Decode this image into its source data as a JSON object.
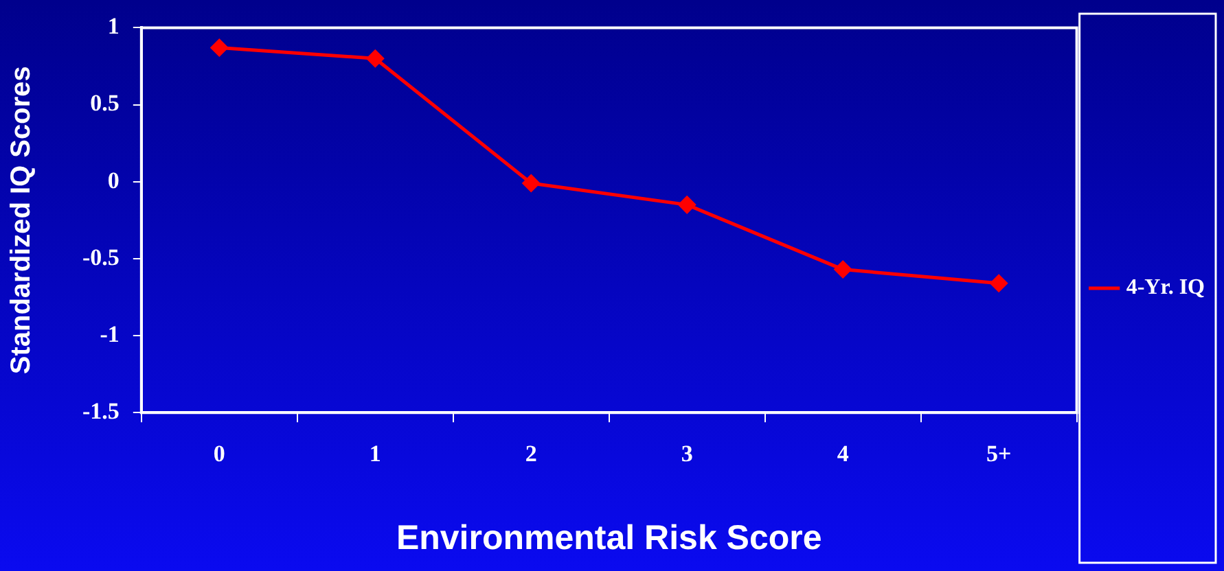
{
  "chart_data": {
    "type": "line",
    "xlabel": "Environmental Risk Score",
    "ylabel": "Standardized IQ Scores",
    "categories": [
      "0",
      "1",
      "2",
      "3",
      "4",
      "5+"
    ],
    "series": [
      {
        "name": "4-Yr. IQ",
        "color": "#ff0000",
        "values": [
          0.87,
          0.8,
          -0.01,
          -0.15,
          -0.57,
          -0.66
        ]
      }
    ],
    "ylim": [
      -1.5,
      1
    ],
    "yticks": [
      -1.5,
      -1,
      -0.5,
      0,
      0.5,
      1
    ],
    "grid": false,
    "legend": "right",
    "marker": "diamond",
    "line_style": "solid"
  }
}
